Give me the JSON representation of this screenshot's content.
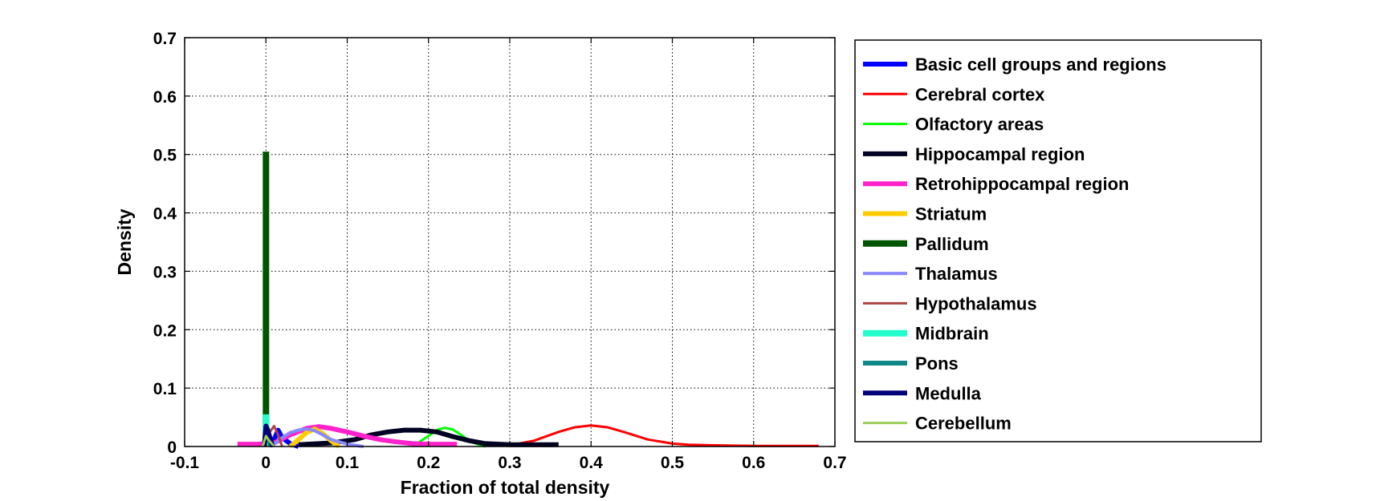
{
  "chart_data": {
    "type": "line",
    "title": "",
    "xlabel": "Fraction of total density",
    "ylabel": "Density",
    "xlim": [
      -0.1,
      0.7
    ],
    "ylim": [
      0,
      0.7
    ],
    "xticks": [
      -0.1,
      0,
      0.1,
      0.2,
      0.3,
      0.4,
      0.5,
      0.6,
      0.7
    ],
    "yticks": [
      0,
      0.1,
      0.2,
      0.3,
      0.4,
      0.5,
      0.6,
      0.7
    ],
    "xtick_labels": [
      "-0.1",
      "0",
      "0.1",
      "0.2",
      "0.3",
      "0.4",
      "0.5",
      "0.6",
      "0.7"
    ],
    "ytick_labels": [
      "0",
      "0.1",
      "0.2",
      "0.3",
      "0.4",
      "0.5",
      "0.6",
      "0.7"
    ],
    "grid": true,
    "legend_position": "outside-right",
    "series": [
      {
        "name": "Basic cell groups and regions",
        "color": "#0000ff",
        "width": 6,
        "x": [
          0.005,
          0.01,
          0.015,
          0.02,
          0.03,
          0.04
        ],
        "y": [
          0,
          0.012,
          0.028,
          0.015,
          0.005,
          0
        ]
      },
      {
        "name": "Cerebral cortex",
        "color": "#ff0000",
        "width": 3,
        "x": [
          0.3,
          0.33,
          0.36,
          0.38,
          0.4,
          0.42,
          0.44,
          0.47,
          0.5,
          0.52,
          0.55,
          0.6,
          0.65,
          0.68
        ],
        "y": [
          0.002,
          0.01,
          0.025,
          0.033,
          0.036,
          0.033,
          0.025,
          0.012,
          0.005,
          0.003,
          0.002,
          0.001,
          0.001,
          0.001
        ]
      },
      {
        "name": "Olfactory areas",
        "color": "#00ff00",
        "width": 3,
        "x": [
          0.18,
          0.2,
          0.21,
          0.22,
          0.23,
          0.24,
          0.25,
          0.26,
          0.27
        ],
        "y": [
          0,
          0.018,
          0.028,
          0.032,
          0.029,
          0.02,
          0.01,
          0.004,
          0
        ]
      },
      {
        "name": "Hippocampal region",
        "color": "#000022",
        "width": 6,
        "x": [
          0.04,
          0.08,
          0.11,
          0.13,
          0.15,
          0.17,
          0.19,
          0.21,
          0.23,
          0.25,
          0.27,
          0.3,
          0.33,
          0.36
        ],
        "y": [
          0.003,
          0.006,
          0.012,
          0.02,
          0.025,
          0.028,
          0.028,
          0.025,
          0.017,
          0.01,
          0.005,
          0.003,
          0.003,
          0.003
        ]
      },
      {
        "name": "Retrohippocampal region",
        "color": "#ff22cc",
        "width": 6,
        "x": [
          -0.035,
          -0.01,
          0.01,
          0.03,
          0.05,
          0.065,
          0.08,
          0.1,
          0.12,
          0.14,
          0.16,
          0.18,
          0.2,
          0.22,
          0.235
        ],
        "y": [
          0.004,
          0.004,
          0.006,
          0.02,
          0.031,
          0.034,
          0.031,
          0.025,
          0.018,
          0.012,
          0.008,
          0.005,
          0.004,
          0.004,
          0.004
        ]
      },
      {
        "name": "Striatum",
        "color": "#ffcc00",
        "width": 6,
        "x": [
          0.03,
          0.04,
          0.05,
          0.06,
          0.07,
          0.08,
          0.09
        ],
        "y": [
          0,
          0.012,
          0.024,
          0.03,
          0.022,
          0.01,
          0
        ]
      },
      {
        "name": "Pallidum",
        "color": "#005500",
        "width": 8,
        "x": [
          0,
          0,
          0
        ],
        "y": [
          0,
          0.5,
          0.505
        ]
      },
      {
        "name": "Thalamus",
        "color": "#8888ff",
        "width": 4,
        "x": [
          0.01,
          0.02,
          0.03,
          0.04,
          0.05,
          0.06,
          0.07,
          0.08,
          0.1,
          0.12
        ],
        "y": [
          0.004,
          0.015,
          0.024,
          0.028,
          0.03,
          0.027,
          0.02,
          0.012,
          0.004,
          0
        ]
      },
      {
        "name": "Hypothalamus",
        "color": "#aa4444",
        "width": 3,
        "x": [
          0,
          0.005,
          0.01,
          0.015,
          0.02
        ],
        "y": [
          0,
          0.025,
          0.035,
          0.02,
          0
        ]
      },
      {
        "name": "Midbrain",
        "color": "#22ffcc",
        "width": 8,
        "x": [
          0,
          0,
          0
        ],
        "y": [
          0,
          0.03,
          0.055
        ]
      },
      {
        "name": "Pons",
        "color": "#118888",
        "width": 6,
        "x": [
          -0.002,
          0,
          0.002,
          0.006
        ],
        "y": [
          0,
          0.02,
          0.03,
          0
        ]
      },
      {
        "name": "Medulla",
        "color": "#000077",
        "width": 6,
        "x": [
          -0.002,
          0,
          0.004,
          0.008
        ],
        "y": [
          0,
          0.035,
          0.02,
          0
        ]
      },
      {
        "name": "Cerebellum",
        "color": "#99cc55",
        "width": 3,
        "x": [
          -0.004,
          0,
          0.004,
          0.01
        ],
        "y": [
          0,
          0.018,
          0.01,
          0
        ]
      }
    ]
  }
}
